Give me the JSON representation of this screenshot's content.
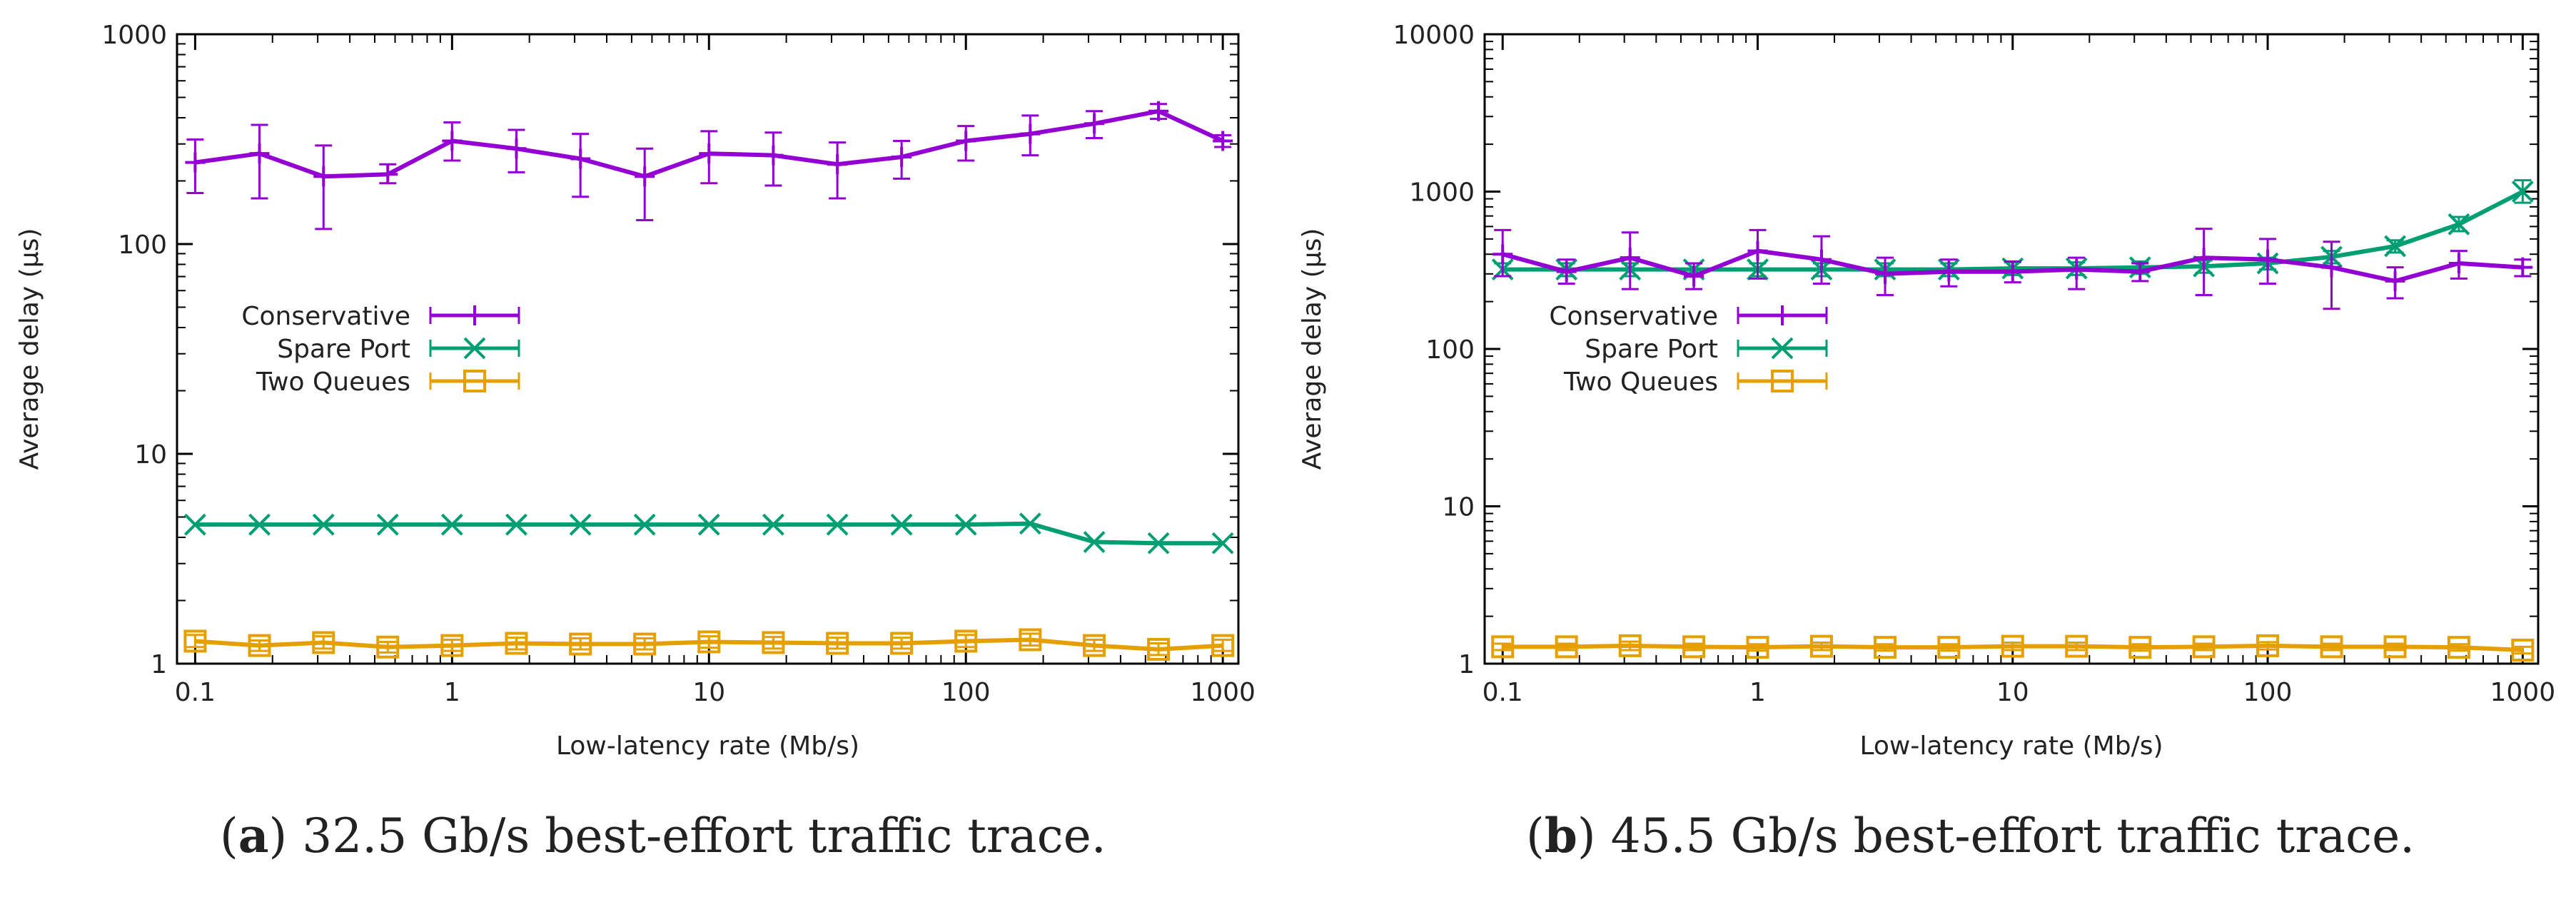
{
  "captions": [
    {
      "letter": "a",
      "open": "(",
      "close": ")",
      "text": "32.5 Gb/s best-effort traffic trace."
    },
    {
      "letter": "b",
      "open": "(",
      "close": ")",
      "text": "45.5 Gb/s best-effort traffic trace."
    }
  ],
  "chart_data": [
    {
      "type": "line",
      "xlabel": "Low-latency rate (Mb/s)",
      "ylabel": "Average delay (µs)",
      "xscale": "log",
      "yscale": "log",
      "xlim": [
        0.085,
        1150
      ],
      "ylim": [
        1,
        1000
      ],
      "xticks": [
        0.1,
        1,
        10,
        100,
        1000
      ],
      "xtick_labels": [
        "0.1",
        "1",
        "10",
        "100",
        "1000"
      ],
      "yticks": [
        1,
        10,
        100,
        1000
      ],
      "ytick_labels": [
        "1",
        "10",
        "100",
        "1000"
      ],
      "grid": false,
      "legend_position": "middle-left",
      "x": [
        0.1,
        0.178,
        0.316,
        0.562,
        1,
        1.78,
        3.16,
        5.62,
        10,
        17.8,
        31.6,
        56.2,
        100,
        178,
        316,
        562,
        1000
      ],
      "series": [
        {
          "name": "Conservative",
          "color": "#9400d3",
          "marker": "plus",
          "y": [
            245,
            270,
            210,
            215,
            310,
            285,
            255,
            210,
            270,
            265,
            240,
            260,
            310,
            335,
            375,
            430,
            310
          ],
          "y_low": [
            175,
            165,
            118,
            195,
            250,
            220,
            168,
            130,
            195,
            190,
            165,
            205,
            250,
            265,
            320,
            395,
            290
          ],
          "y_high": [
            315,
            370,
            295,
            240,
            380,
            350,
            335,
            285,
            345,
            340,
            305,
            310,
            365,
            410,
            430,
            465,
            330
          ]
        },
        {
          "name": "Spare Port",
          "color": "#009e73",
          "marker": "x",
          "y": [
            4.6,
            4.6,
            4.6,
            4.6,
            4.6,
            4.6,
            4.6,
            4.6,
            4.6,
            4.6,
            4.6,
            4.6,
            4.6,
            4.65,
            3.8,
            3.75,
            3.75
          ],
          "y_low": null,
          "y_high": null
        },
        {
          "name": "Two Queues",
          "color": "#e69f00",
          "marker": "square",
          "y": [
            1.28,
            1.22,
            1.26,
            1.2,
            1.22,
            1.25,
            1.24,
            1.24,
            1.27,
            1.26,
            1.25,
            1.25,
            1.28,
            1.3,
            1.22,
            1.17,
            1.22
          ],
          "y_low": [
            1.2,
            1.15,
            1.18,
            1.13,
            1.15,
            1.17,
            1.17,
            1.17,
            1.19,
            1.18,
            1.18,
            1.18,
            1.2,
            1.22,
            1.15,
            1.1,
            1.15
          ],
          "y_high": [
            1.37,
            1.29,
            1.35,
            1.27,
            1.3,
            1.33,
            1.32,
            1.32,
            1.35,
            1.34,
            1.33,
            1.33,
            1.37,
            1.39,
            1.3,
            1.25,
            1.3
          ]
        }
      ]
    },
    {
      "type": "line",
      "xlabel": "Low-latency rate (Mb/s)",
      "ylabel": "Average delay (µs)",
      "xscale": "log",
      "yscale": "log",
      "xlim": [
        0.085,
        1150
      ],
      "ylim": [
        1,
        10000
      ],
      "xticks": [
        0.1,
        1,
        10,
        100,
        1000
      ],
      "xtick_labels": [
        "0.1",
        "1",
        "10",
        "100",
        "1000"
      ],
      "yticks": [
        1,
        10,
        100,
        1000,
        10000
      ],
      "ytick_labels": [
        "1",
        "10",
        "100",
        "1000",
        "10000"
      ],
      "grid": false,
      "legend_position": "middle-left",
      "x": [
        0.1,
        0.178,
        0.316,
        0.562,
        1,
        1.78,
        3.16,
        5.62,
        10,
        17.8,
        31.6,
        56.2,
        100,
        178,
        316,
        562,
        1000
      ],
      "series": [
        {
          "name": "Conservative",
          "color": "#9400d3",
          "marker": "plus",
          "y": [
            400,
            310,
            380,
            290,
            420,
            370,
            300,
            310,
            310,
            320,
            310,
            380,
            370,
            330,
            270,
            350,
            330
          ],
          "y_low": [
            290,
            260,
            240,
            240,
            280,
            260,
            220,
            250,
            265,
            240,
            270,
            220,
            260,
            180,
            210,
            280,
            290
          ],
          "y_high": [
            570,
            370,
            550,
            350,
            570,
            520,
            380,
            370,
            360,
            380,
            350,
            580,
            500,
            480,
            330,
            420,
            370
          ]
        },
        {
          "name": "Spare Port",
          "color": "#009e73",
          "marker": "x",
          "y": [
            320,
            320,
            320,
            320,
            320,
            320,
            320,
            320,
            325,
            325,
            330,
            335,
            350,
            385,
            450,
            620,
            1000
          ],
          "y_low": [
            290,
            290,
            290,
            290,
            290,
            290,
            290,
            290,
            295,
            295,
            300,
            305,
            320,
            350,
            410,
            560,
            850
          ],
          "y_high": [
            350,
            350,
            350,
            350,
            350,
            350,
            350,
            350,
            355,
            355,
            360,
            365,
            380,
            420,
            490,
            690,
            1180
          ]
        },
        {
          "name": "Two Queues",
          "color": "#e69f00",
          "marker": "square",
          "y": [
            1.28,
            1.28,
            1.3,
            1.28,
            1.27,
            1.29,
            1.27,
            1.27,
            1.29,
            1.29,
            1.27,
            1.28,
            1.3,
            1.28,
            1.28,
            1.27,
            1.22
          ],
          "y_low": [
            1.22,
            1.22,
            1.22,
            1.22,
            1.21,
            1.22,
            1.21,
            1.21,
            1.22,
            1.22,
            1.21,
            1.22,
            1.23,
            1.22,
            1.22,
            1.21,
            1.16
          ],
          "y_high": [
            1.34,
            1.34,
            1.38,
            1.34,
            1.33,
            1.36,
            1.33,
            1.33,
            1.36,
            1.36,
            1.33,
            1.34,
            1.37,
            1.34,
            1.34,
            1.33,
            1.28
          ]
        }
      ]
    }
  ]
}
